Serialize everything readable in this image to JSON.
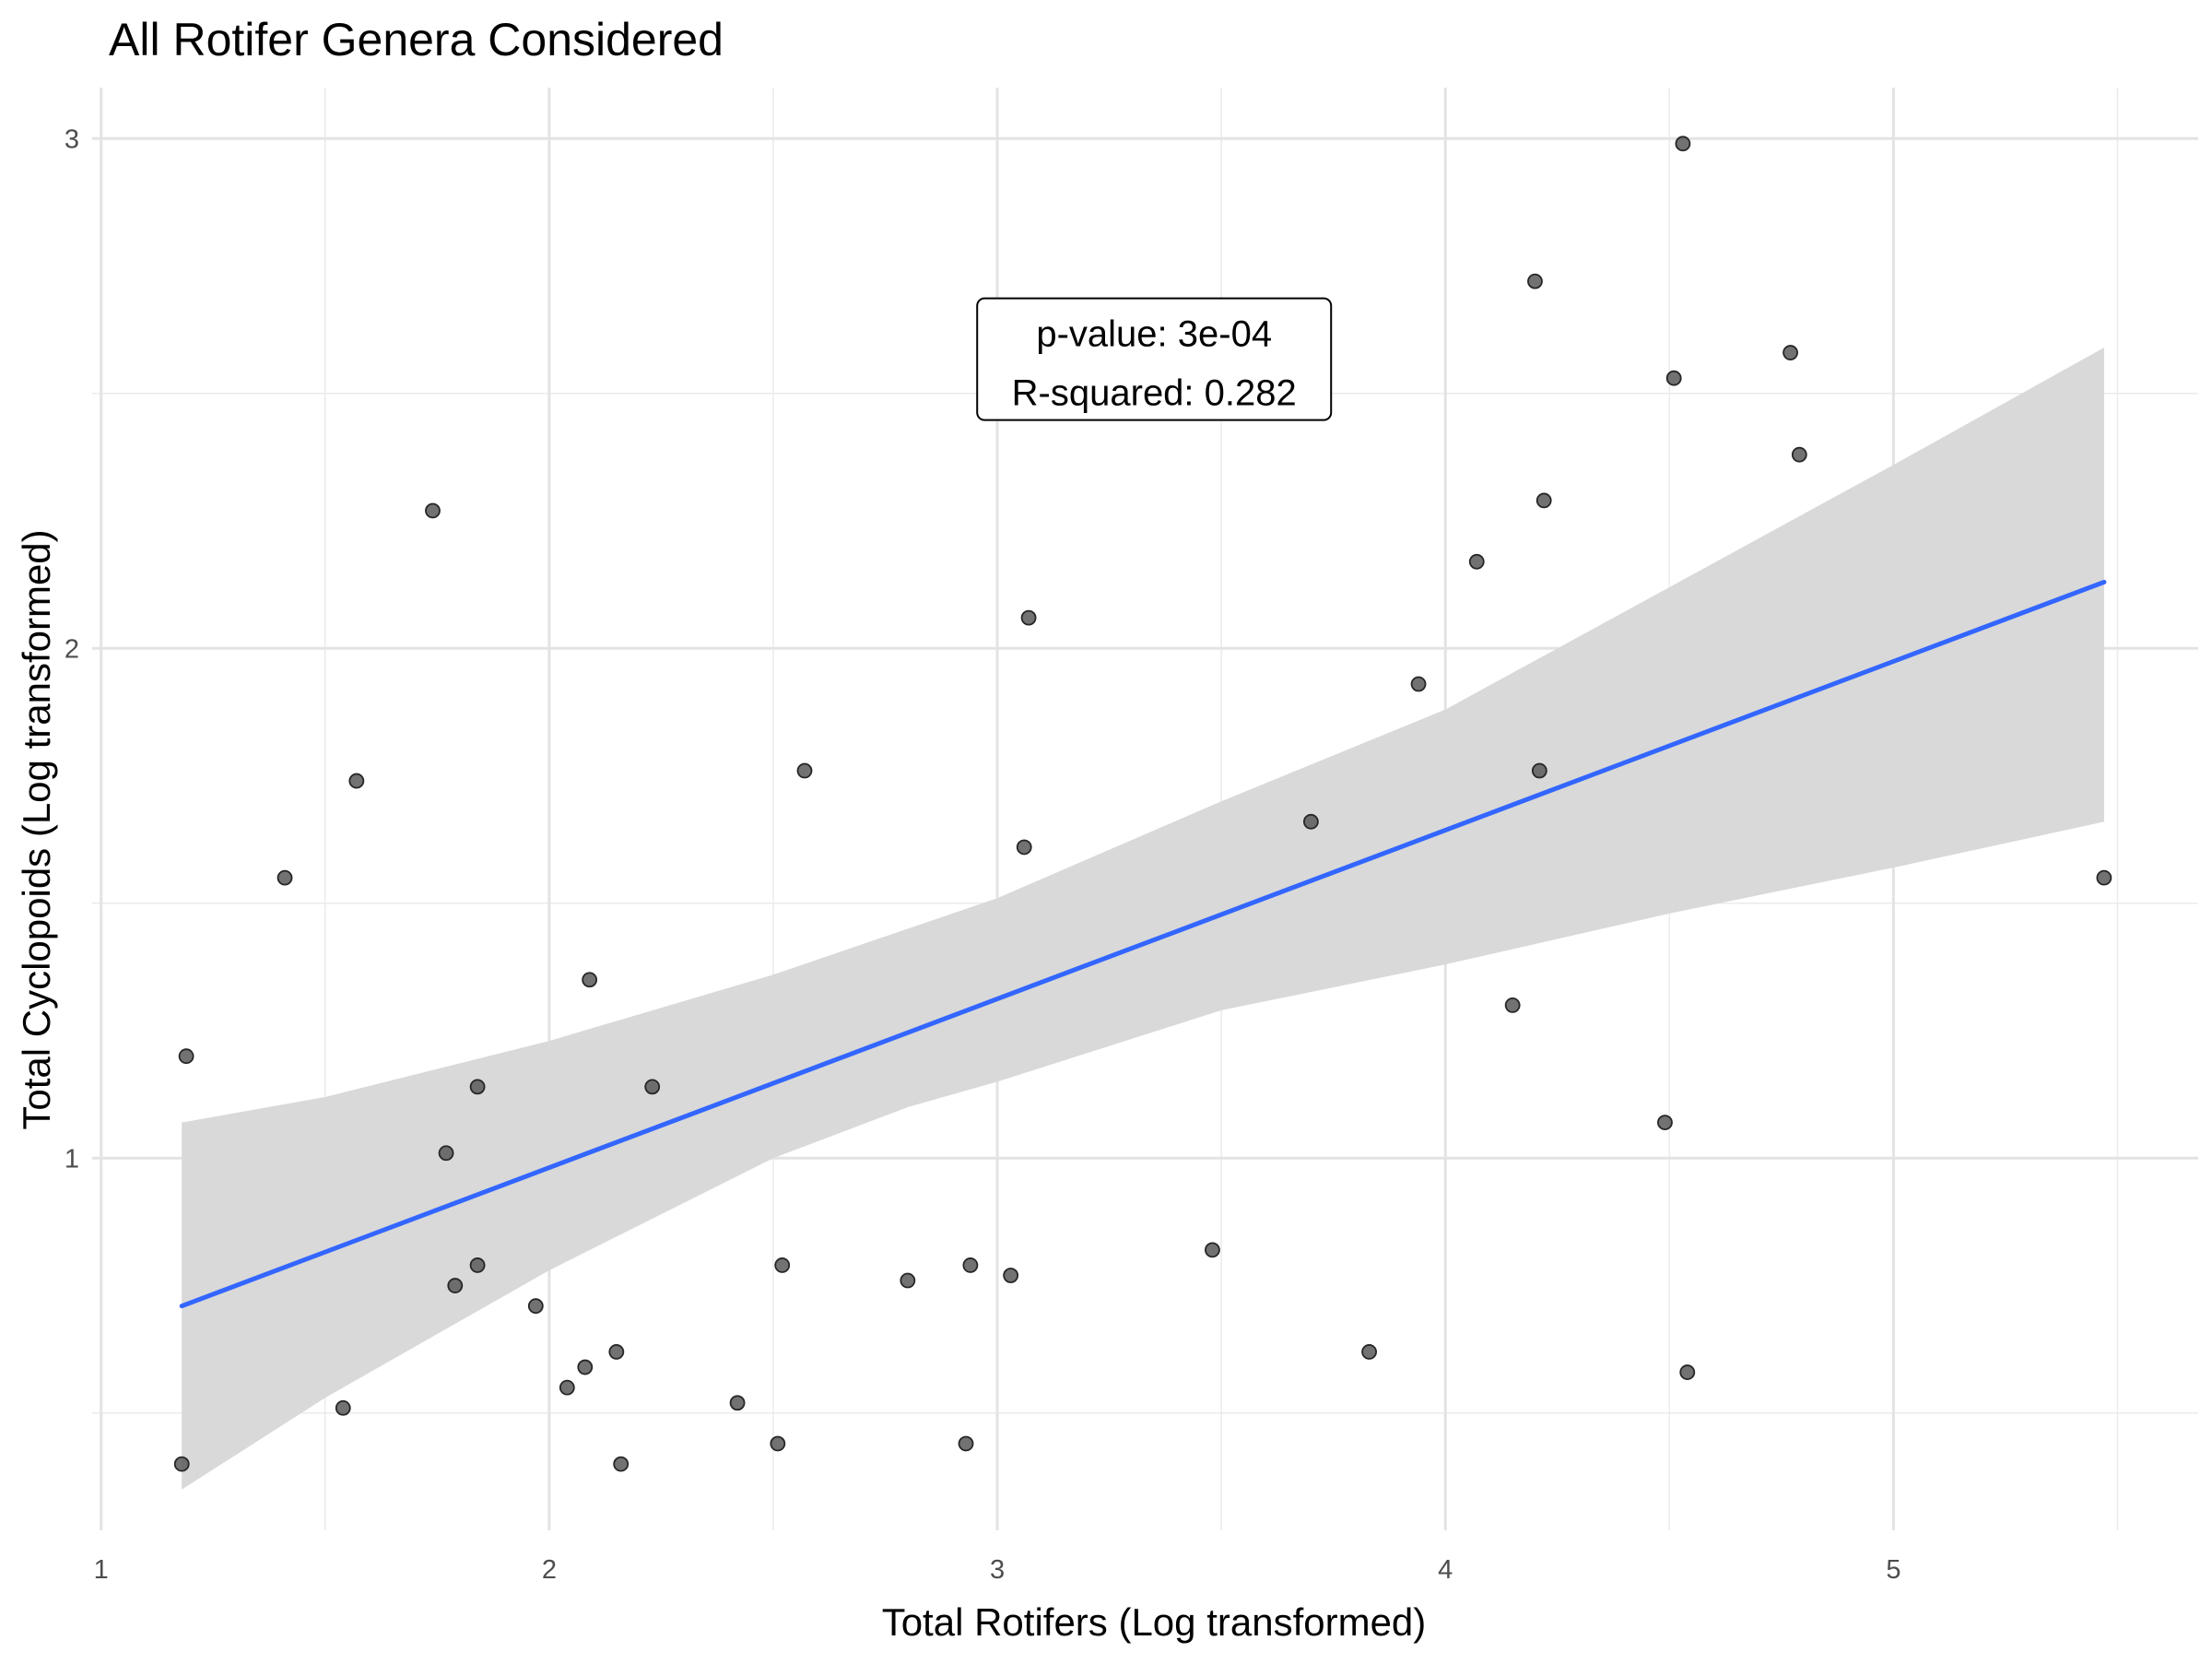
{
  "chart_data": {
    "type": "scatter",
    "title": "All Rotifer Genera Considered",
    "xlabel": "Total Rotifers (Log transformed)",
    "ylabel": "Total Cyclopoids (Log transformed)",
    "xlim": [
      0.98,
      5.68
    ],
    "ylim": [
      0.27,
      3.1
    ],
    "x_ticks": [
      1,
      2,
      3,
      4,
      5
    ],
    "y_ticks": [
      1,
      2,
      3
    ],
    "x_tick_labels": [
      "1",
      "2",
      "3",
      "4",
      "5"
    ],
    "y_tick_labels": [
      "1",
      "2",
      "3"
    ],
    "grid": true,
    "series": [
      {
        "points": [
          {
            "x": 1.19,
            "y": 1.2
          },
          {
            "x": 1.18,
            "y": 0.4
          },
          {
            "x": 1.41,
            "y": 1.55
          },
          {
            "x": 1.54,
            "y": 0.51
          },
          {
            "x": 1.57,
            "y": 1.74
          },
          {
            "x": 1.74,
            "y": 2.27
          },
          {
            "x": 1.77,
            "y": 1.01
          },
          {
            "x": 1.79,
            "y": 0.75
          },
          {
            "x": 1.84,
            "y": 1.14
          },
          {
            "x": 1.84,
            "y": 0.79
          },
          {
            "x": 1.97,
            "y": 0.71
          },
          {
            "x": 2.04,
            "y": 0.55
          },
          {
            "x": 2.08,
            "y": 0.59
          },
          {
            "x": 2.09,
            "y": 1.35
          },
          {
            "x": 2.15,
            "y": 0.62
          },
          {
            "x": 2.16,
            "y": 0.4
          },
          {
            "x": 2.23,
            "y": 1.14
          },
          {
            "x": 2.42,
            "y": 0.52
          },
          {
            "x": 2.51,
            "y": 0.44
          },
          {
            "x": 2.52,
            "y": 0.79
          },
          {
            "x": 2.57,
            "y": 1.76
          },
          {
            "x": 2.8,
            "y": 0.76
          },
          {
            "x": 2.93,
            "y": 0.44
          },
          {
            "x": 2.94,
            "y": 0.79
          },
          {
            "x": 3.03,
            "y": 0.77
          },
          {
            "x": 3.06,
            "y": 1.61
          },
          {
            "x": 3.07,
            "y": 2.06
          },
          {
            "x": 3.48,
            "y": 0.82
          },
          {
            "x": 3.7,
            "y": 1.66
          },
          {
            "x": 3.83,
            "y": 0.62
          },
          {
            "x": 3.94,
            "y": 1.93
          },
          {
            "x": 4.07,
            "y": 2.17
          },
          {
            "x": 4.15,
            "y": 1.3
          },
          {
            "x": 4.2,
            "y": 2.72
          },
          {
            "x": 4.21,
            "y": 1.76
          },
          {
            "x": 4.22,
            "y": 2.29
          },
          {
            "x": 4.49,
            "y": 1.07
          },
          {
            "x": 4.51,
            "y": 2.53
          },
          {
            "x": 4.53,
            "y": 2.99
          },
          {
            "x": 4.54,
            "y": 0.58
          },
          {
            "x": 4.77,
            "y": 2.58
          },
          {
            "x": 4.79,
            "y": 2.38
          },
          {
            "x": 5.47,
            "y": 1.55
          }
        ],
        "point_color": "#595959"
      }
    ],
    "regression": {
      "line": [
        {
          "x": 1.18,
          "y": 0.71
        },
        {
          "x": 5.47,
          "y": 2.13
        }
      ],
      "line_color": "#3366FF",
      "ci_band": [
        {
          "x": 1.18,
          "lower": 0.35,
          "upper": 1.07
        },
        {
          "x": 1.5,
          "lower": 0.53,
          "upper": 1.12
        },
        {
          "x": 2.0,
          "lower": 0.78,
          "upper": 1.23
        },
        {
          "x": 2.5,
          "lower": 1.0,
          "upper": 1.36
        },
        {
          "x": 2.8,
          "lower": 1.1,
          "upper": 1.45
        },
        {
          "x": 3.0,
          "lower": 1.15,
          "upper": 1.51
        },
        {
          "x": 3.5,
          "lower": 1.29,
          "upper": 1.7
        },
        {
          "x": 4.0,
          "lower": 1.38,
          "upper": 1.88
        },
        {
          "x": 4.5,
          "lower": 1.48,
          "upper": 2.12
        },
        {
          "x": 5.0,
          "lower": 1.57,
          "upper": 2.36
        },
        {
          "x": 5.47,
          "lower": 1.66,
          "upper": 2.59
        }
      ],
      "band_color": "#d9d9d9"
    },
    "annotation": {
      "lines": [
        "p-value: 3e-04",
        "R-squared: 0.282"
      ],
      "anchor": {
        "x": 3.35,
        "y": 2.56
      }
    }
  }
}
